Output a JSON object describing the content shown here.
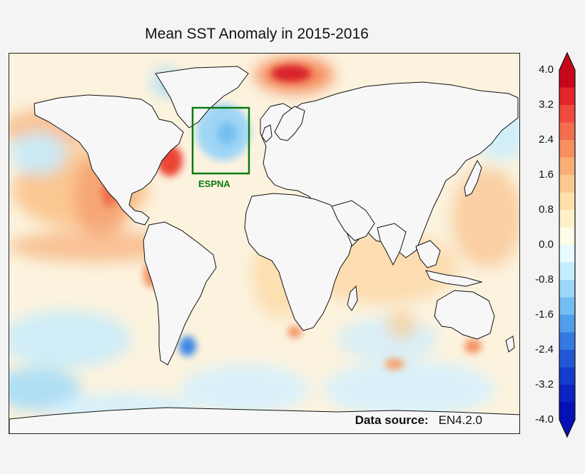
{
  "title": "Mean SST Anomaly in 2015-2016",
  "region_box": {
    "label": "ESPNA",
    "color": "#0b7a12"
  },
  "source": {
    "label": "Data source:",
    "value": "EN4.2.0"
  },
  "colorbar": {
    "min": -4.0,
    "max": 4.0,
    "ticks": [
      "4.0",
      "3.2",
      "2.4",
      "1.6",
      "0.8",
      "0.0",
      "-0.8",
      "-1.6",
      "-2.4",
      "-3.2",
      "-4.0"
    ],
    "colors": [
      "#c6071a",
      "#e0262a",
      "#ee4b3e",
      "#f46d4d",
      "#f78f5f",
      "#f9ae75",
      "#fbc98e",
      "#fde0aa",
      "#fff0c8",
      "#fffce8",
      "#e9faff",
      "#c4ecfd",
      "#9bd7f8",
      "#72bdf2",
      "#4f9deb",
      "#3479e0",
      "#2257d4",
      "#153ccb",
      "#0b23c0",
      "#0510b5"
    ]
  },
  "colors": {
    "land": "#f7f7f7",
    "ocean_neutral": "#fbf4e2"
  }
}
